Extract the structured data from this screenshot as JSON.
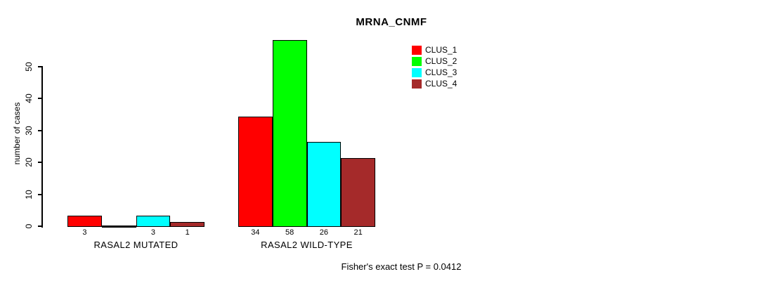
{
  "title": "MRNA_CNMF",
  "chart_data": {
    "type": "bar",
    "title": "MRNA_CNMF",
    "xlabel": "",
    "ylabel": "number of cases",
    "ylim": [
      0,
      50
    ],
    "yticks": [
      0,
      10,
      20,
      30,
      40,
      50
    ],
    "grid": false,
    "legend_position": "top-right",
    "categories": [
      "RASAL2 MUTATED",
      "RASAL2 WILD-TYPE"
    ],
    "series": [
      {
        "name": "CLUS_1",
        "color": "#FF0000",
        "values": [
          3,
          34
        ]
      },
      {
        "name": "CLUS_2",
        "color": "#00FF00",
        "values": [
          0,
          58
        ]
      },
      {
        "name": "CLUS_3",
        "color": "#00FFFF",
        "values": [
          3,
          26
        ]
      },
      {
        "name": "CLUS_4",
        "color": "#A52A2A",
        "values": [
          1,
          21
        ]
      }
    ],
    "bar_value_labels": [
      "3",
      "3",
      "1",
      "34",
      "58",
      "26",
      "21"
    ],
    "annotation": "Fisher's exact test P = 0.0412"
  }
}
